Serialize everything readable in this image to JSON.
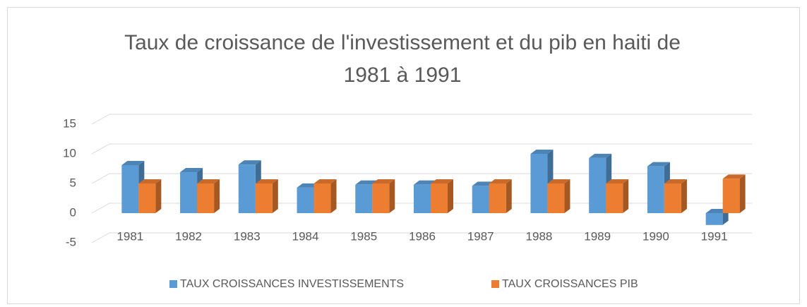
{
  "chart_data": {
    "type": "bar3d",
    "title": "Taux de croissance de l'investissement et du pib en haiti de 1981 à 1991",
    "categories": [
      "1981",
      "1982",
      "1983",
      "1984",
      "1985",
      "1986",
      "1987",
      "1988",
      "1989",
      "1990",
      "1991"
    ],
    "series": [
      {
        "name": "TAUX CROISSANCES INVESTISSEMENTS",
        "color": "#5b9bd5",
        "values": [
          8.1,
          6.9,
          8.2,
          4.3,
          4.8,
          4.8,
          4.6,
          10.0,
          9.3,
          7.9,
          -2.0
        ]
      },
      {
        "name": "TAUX CROISSANCES PIB",
        "color": "#ed7d31",
        "values": [
          5.0,
          5.0,
          5.0,
          5.0,
          5.0,
          5.0,
          5.0,
          5.0,
          5.0,
          5.0,
          5.8
        ]
      }
    ],
    "ylim": [
      -5,
      15
    ],
    "yticks": [
      -5,
      0,
      5,
      10,
      15
    ],
    "grid": true,
    "legend": "bottom"
  }
}
